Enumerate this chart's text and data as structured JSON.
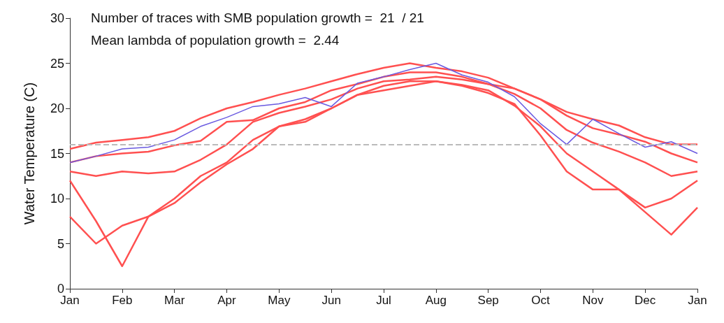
{
  "chart_data": {
    "type": "line",
    "ylabel": "Water Temperature (C)",
    "annotations": [
      "Number of traces with SMB population growth =  21  / 21",
      "Mean lambda of population growth =  2.44"
    ],
    "categories": [
      "Jan",
      null,
      "Feb",
      null,
      "Mar",
      null,
      "Apr",
      null,
      "May",
      null,
      "Jun",
      null,
      "Jul",
      null,
      "Aug",
      null,
      "Sep",
      null,
      "Oct",
      null,
      "Nov",
      null,
      "Dec",
      null,
      "Jan"
    ],
    "ylim": [
      0,
      30
    ],
    "yticks": [
      0,
      5,
      10,
      15,
      20,
      25,
      30
    ],
    "grid": false,
    "ref_lines": [
      {
        "axis": "y",
        "value": 16,
        "color": "#bbbbbb",
        "line_style": "dashed"
      }
    ],
    "series": [
      {
        "color": "#ff5050",
        "values": [
          15.5,
          16.2,
          16.5,
          16.8,
          17.5,
          18.9,
          20,
          20.7,
          21.5,
          22.2,
          23,
          23.8,
          24.5,
          25,
          24.5,
          24.1,
          23.4,
          22.2,
          21,
          19.6,
          18.8,
          18.1,
          16.8,
          16,
          16
        ]
      },
      {
        "color": "#ff5050",
        "values": [
          14,
          14.7,
          15,
          15.2,
          15.9,
          16.4,
          18.5,
          18.7,
          20,
          20.7,
          22,
          22.7,
          23.5,
          24,
          24,
          23.5,
          22.7,
          22.2,
          21,
          19.2,
          17.8,
          17.1,
          16.3,
          15,
          14
        ]
      },
      {
        "color": "#ff5050",
        "values": [
          13,
          12.5,
          13,
          12.8,
          13,
          14.3,
          16,
          18.5,
          19.5,
          20.2,
          21,
          22.2,
          23,
          23.2,
          23.5,
          23.2,
          22.7,
          21.6,
          20,
          17.6,
          16.2,
          15.2,
          14,
          12.5,
          13
        ]
      },
      {
        "color": "#ff5050",
        "values": [
          8,
          5,
          7,
          8,
          9.5,
          11.8,
          13.8,
          15.5,
          18,
          18.8,
          20,
          21.5,
          22.5,
          23,
          23,
          22.6,
          22,
          20.3,
          18,
          15,
          13,
          11,
          8.5,
          6,
          9
        ]
      },
      {
        "color": "#ff5050",
        "values": [
          12,
          7.5,
          2.5,
          8,
          10,
          12.5,
          14,
          16.5,
          18,
          18.5,
          20,
          21.5,
          22,
          22.5,
          23,
          22.5,
          21.7,
          20.5,
          17,
          13,
          11,
          11,
          9,
          10,
          12
        ]
      },
      {
        "color": "#6a5ae0",
        "values": [
          14,
          14.7,
          15.5,
          15.7,
          16.5,
          18,
          19,
          20.2,
          20.5,
          21.2,
          20.2,
          22.8,
          23.5,
          24.3,
          25,
          23.7,
          22.9,
          21.3,
          18.3,
          16,
          18.8,
          17.2,
          15.7,
          16.3,
          15
        ]
      }
    ]
  }
}
